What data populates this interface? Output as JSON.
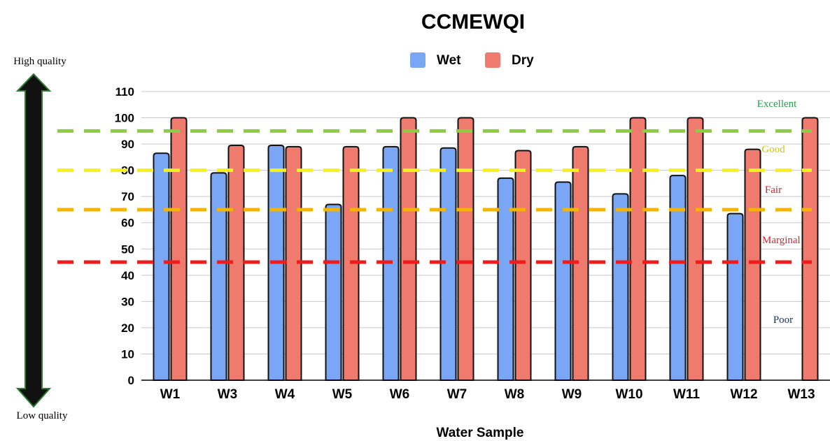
{
  "chart_data": {
    "type": "bar",
    "title": "CCMEWQI",
    "xlabel": "Water Sample",
    "ylabel": "",
    "ylim": [
      0,
      110
    ],
    "yticks": [
      0,
      10,
      20,
      30,
      40,
      50,
      60,
      70,
      80,
      90,
      100,
      110
    ],
    "grid": true,
    "legend_position": "top-center",
    "categories": [
      "W1",
      "W3",
      "W4",
      "W5",
      "W6",
      "W7",
      "W8",
      "W9",
      "W10",
      "W11",
      "W12",
      "W13"
    ],
    "series": [
      {
        "name": "Wet",
        "color": "#7aa7f5",
        "values": [
          86.5,
          79,
          89.5,
          67,
          89,
          88.5,
          77,
          75.5,
          71,
          78,
          63.5,
          null
        ]
      },
      {
        "name": "Dry",
        "color": "#ef7a6e",
        "values": [
          100,
          89.5,
          89,
          89,
          100,
          100,
          87.5,
          89,
          100,
          100,
          88,
          100
        ]
      }
    ],
    "thresholds": [
      {
        "label": "Excellent",
        "value": 95,
        "color": "#8fcc46",
        "label_color": "#22a04a"
      },
      {
        "label": "Good",
        "value": 80,
        "color": "#f5f020",
        "label_color": "#d4c400"
      },
      {
        "label": "Fair",
        "value": 65,
        "color": "#f5b400",
        "label_color": "#e0202a"
      },
      {
        "label": "Marginal",
        "value": 45,
        "color": "#ee1c1c",
        "label_color": "#e0202a"
      }
    ],
    "extra_labels": [
      {
        "label": "Poor",
        "color": "#1a2e6e"
      }
    ]
  },
  "quality_arrow": {
    "top_label": "High quality",
    "bottom_label": "Low quality",
    "fill_color": "#111111",
    "outline_color": "#2e7d32"
  }
}
